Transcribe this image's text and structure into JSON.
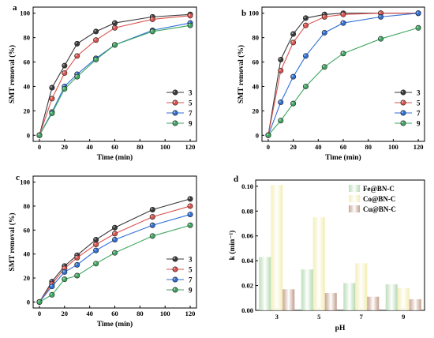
{
  "chart_data": [
    {
      "type": "line",
      "panel": "a",
      "xlabel": "Time (min)",
      "ylabel": "SMT removal (%)",
      "xlim": [
        -5,
        125
      ],
      "ylim": [
        -5,
        105
      ],
      "xticks": [
        0,
        20,
        40,
        60,
        80,
        100,
        120
      ],
      "yticks": [
        0,
        20,
        40,
        60,
        80,
        100
      ],
      "legend_position": "bottom-right",
      "x": [
        0,
        10,
        20,
        30,
        45,
        60,
        90,
        120
      ],
      "series": [
        {
          "name": "3",
          "color": "#3a3a3a",
          "values": [
            0,
            39,
            57,
            75,
            85,
            92,
            97,
            99
          ]
        },
        {
          "name": "5",
          "color": "#d9534f",
          "values": [
            0,
            30,
            51,
            65,
            78,
            88,
            95,
            98
          ]
        },
        {
          "name": "7",
          "color": "#2f6fd6",
          "values": [
            0,
            19,
            40,
            50,
            63,
            74,
            86,
            92
          ]
        },
        {
          "name": "9",
          "color": "#3fa661",
          "values": [
            0,
            18,
            38,
            48,
            62,
            74,
            85,
            90
          ]
        }
      ]
    },
    {
      "type": "line",
      "panel": "b",
      "xlabel": "Time (min)",
      "ylabel": "SMT removal (%)",
      "xlim": [
        -5,
        125
      ],
      "ylim": [
        -5,
        105
      ],
      "xticks": [
        0,
        20,
        40,
        60,
        80,
        100,
        120
      ],
      "yticks": [
        0,
        20,
        40,
        60,
        80,
        100
      ],
      "legend_position": "bottom-right",
      "x": [
        0,
        10,
        20,
        30,
        45,
        60,
        90,
        120
      ],
      "series": [
        {
          "name": "3",
          "color": "#3a3a3a",
          "values": [
            0,
            62,
            83,
            96,
            99,
            100,
            100,
            100
          ]
        },
        {
          "name": "5",
          "color": "#d9534f",
          "values": [
            0,
            53,
            76,
            90,
            97,
            99,
            100,
            100
          ]
        },
        {
          "name": "7",
          "color": "#2f6fd6",
          "values": [
            0,
            27,
            48,
            65,
            84,
            92,
            97,
            100
          ]
        },
        {
          "name": "9",
          "color": "#3fa661",
          "values": [
            0,
            12,
            26,
            40,
            56,
            67,
            79,
            88
          ]
        }
      ]
    },
    {
      "type": "line",
      "panel": "c",
      "xlabel": "Time (min)",
      "ylabel": "SMT removal (%)",
      "xlim": [
        -5,
        125
      ],
      "ylim": [
        -5,
        105
      ],
      "xticks": [
        0,
        20,
        40,
        60,
        80,
        100,
        120
      ],
      "yticks": [
        0,
        20,
        40,
        60,
        80,
        100
      ],
      "legend_position": "bottom-right",
      "x": [
        0,
        10,
        20,
        30,
        45,
        60,
        90,
        120
      ],
      "series": [
        {
          "name": "3",
          "color": "#3a3a3a",
          "values": [
            0,
            17,
            30,
            39,
            52,
            62,
            77,
            86
          ]
        },
        {
          "name": "5",
          "color": "#d9534f",
          "values": [
            0,
            15,
            28,
            37,
            48,
            57,
            71,
            80
          ]
        },
        {
          "name": "7",
          "color": "#2f6fd6",
          "values": [
            0,
            13,
            25,
            31,
            43,
            52,
            64,
            73
          ]
        },
        {
          "name": "9",
          "color": "#3fa661",
          "values": [
            0,
            6,
            19,
            22,
            32,
            41,
            55,
            64
          ]
        }
      ]
    },
    {
      "type": "bar",
      "panel": "d",
      "xlabel": "pH",
      "ylabel": "k (min⁻¹)",
      "ylim": [
        0,
        0.105
      ],
      "yticks": [
        0.0,
        0.02,
        0.04,
        0.06,
        0.08,
        0.1
      ],
      "categories": [
        "3",
        "5",
        "7",
        "9"
      ],
      "legend_position": "top-right",
      "series": [
        {
          "name": "Fe@BN-C",
          "color": "#a9d4a6",
          "values": [
            0.043,
            0.033,
            0.022,
            0.021
          ]
        },
        {
          "name": "Co@BN-C",
          "color": "#f1eaa8",
          "values": [
            0.101,
            0.075,
            0.038,
            0.018
          ]
        },
        {
          "name": "Cu@BN-C",
          "color": "#b98d78",
          "values": [
            0.017,
            0.014,
            0.011,
            0.009
          ]
        }
      ]
    }
  ]
}
